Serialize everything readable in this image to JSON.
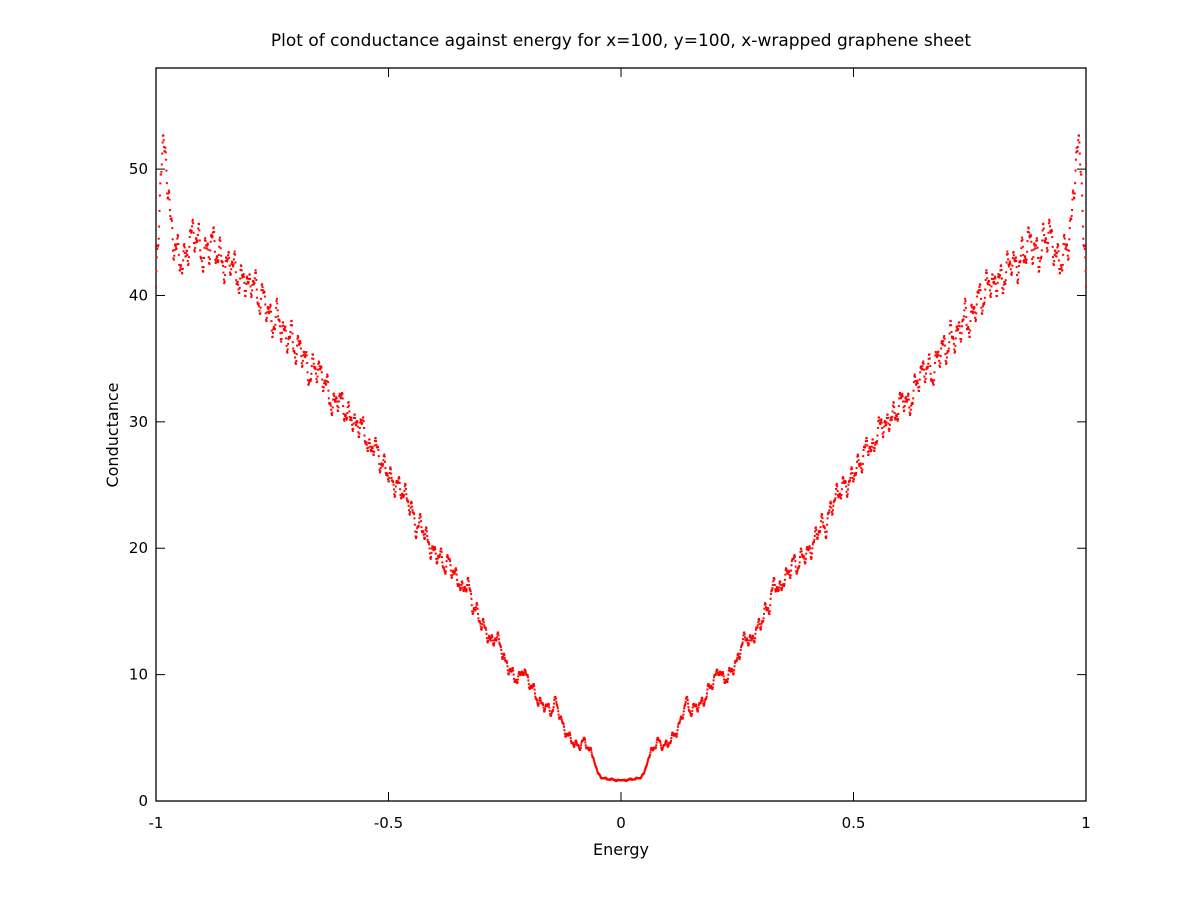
{
  "chart_data": {
    "type": "scatter",
    "title": "Plot of conductance against energy for x=100, y=100, x-wrapped graphene sheet",
    "xlabel": "Energy",
    "ylabel": "Conductance",
    "xlim": [
      -1,
      1
    ],
    "ylim": [
      0,
      58
    ],
    "xticks": [
      -1,
      -0.5,
      0,
      0.5,
      1
    ],
    "xtick_labels": [
      "-1",
      "-0.5",
      "0",
      "0.5",
      "1"
    ],
    "yticks": [
      0,
      10,
      20,
      30,
      40,
      50
    ],
    "ytick_labels": [
      "0",
      "10",
      "20",
      "30",
      "40",
      "50"
    ],
    "grid": false,
    "legend": "none",
    "series_color": "#ff0000",
    "symmetric_about_zero": true,
    "series": [
      {
        "x": [
          0.0,
          0.02,
          0.04,
          0.05,
          0.06,
          0.07,
          0.08,
          0.09,
          0.1,
          0.12,
          0.13,
          0.14,
          0.15,
          0.16,
          0.17,
          0.18,
          0.19,
          0.2,
          0.21,
          0.22,
          0.23,
          0.24,
          0.25,
          0.26,
          0.27,
          0.28,
          0.29,
          0.3,
          0.31,
          0.32,
          0.33,
          0.34,
          0.35,
          0.36,
          0.37,
          0.38,
          0.39,
          0.4,
          0.41,
          0.42,
          0.43,
          0.44,
          0.45,
          0.46,
          0.47,
          0.48,
          0.49,
          0.5,
          0.51,
          0.52,
          0.53,
          0.54,
          0.55,
          0.56,
          0.57,
          0.58,
          0.59,
          0.6,
          0.61,
          0.62,
          0.63,
          0.64,
          0.65,
          0.66,
          0.67,
          0.68,
          0.69,
          0.7,
          0.71,
          0.72,
          0.73,
          0.74,
          0.75,
          0.76,
          0.77,
          0.78,
          0.79,
          0.8,
          0.81,
          0.82,
          0.83,
          0.84,
          0.85,
          0.86,
          0.87,
          0.88,
          0.89,
          0.9,
          0.91,
          0.92,
          0.93,
          0.94,
          0.95,
          0.96,
          0.97,
          0.98,
          0.99,
          1.0
        ],
        "y": [
          1.6,
          1.7,
          1.8,
          2.2,
          3.5,
          4.2,
          4.8,
          4.3,
          4.5,
          5.5,
          6.5,
          8.0,
          7.0,
          7.5,
          7.6,
          8.0,
          9.0,
          9.5,
          10.5,
          9.6,
          9.8,
          10.5,
          11.0,
          12.5,
          13.0,
          12.5,
          13.5,
          14.0,
          15.0,
          15.5,
          17.5,
          16.5,
          17.5,
          18.0,
          19.0,
          18.5,
          19.5,
          19.5,
          20.0,
          21.0,
          22.0,
          21.5,
          23.0,
          24.0,
          24.5,
          25.0,
          25.0,
          26.0,
          26.5,
          27.0,
          28.5,
          27.5,
          29.0,
          30.0,
          29.5,
          30.5,
          30.5,
          31.5,
          32.0,
          31.0,
          32.5,
          33.5,
          34.0,
          34.5,
          33.5,
          35.0,
          36.0,
          35.5,
          37.0,
          36.5,
          37.5,
          38.5,
          37.5,
          39.0,
          40.0,
          39.5,
          41.5,
          40.5,
          41.5,
          41.0,
          42.0,
          43.0,
          42.0,
          43.0,
          43.5,
          44.5,
          43.5,
          43.0,
          44.5,
          45.0,
          44.0,
          42.5,
          43.0,
          44.0,
          46.0,
          52.0,
          50.0,
          40.0
        ]
      }
    ]
  }
}
